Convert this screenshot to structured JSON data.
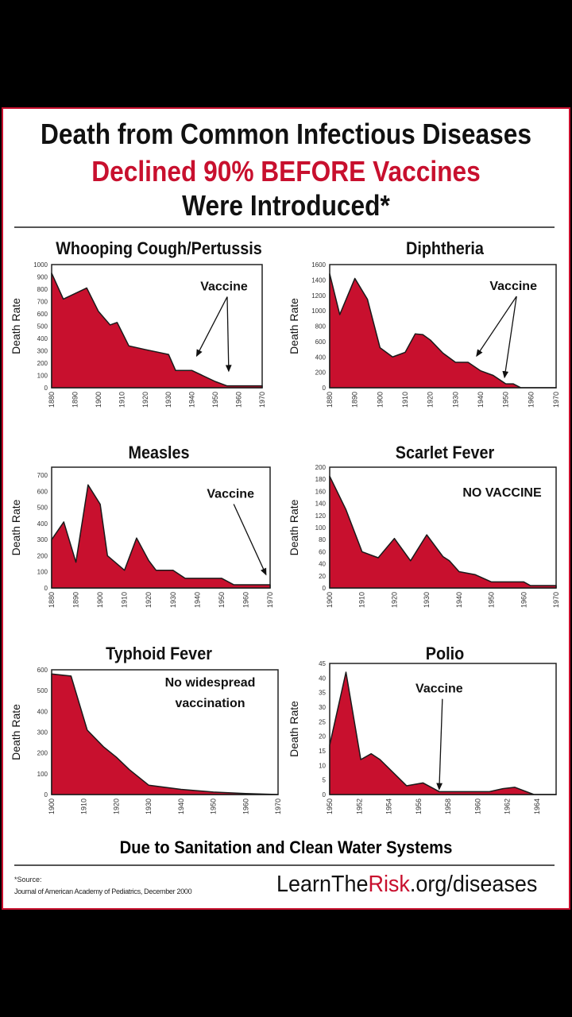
{
  "header": {
    "line1": "Death from Common Infectious Diseases",
    "line2": "Declined 90% BEFORE Vaccines",
    "line3": "Were Introduced*"
  },
  "footer": {
    "tagline": "Due to Sanitation and Clean Water Systems",
    "source_label": "*Source:",
    "source_text": "Journal of American Academy of Pediatrics, December 2000",
    "site_part1": "LearnThe",
    "site_part2": "Risk",
    "site_part3": ".org/diseases"
  },
  "colors": {
    "fill": "#c8102e",
    "accent": "#c8102e",
    "text": "#111111"
  },
  "chart_data": [
    {
      "type": "area",
      "title": "Whooping Cough/Pertussis",
      "ylabel": "Death Rate",
      "xlabel": "",
      "xlim": [
        1880,
        1970
      ],
      "ylim": [
        0,
        1000
      ],
      "xticks": [
        1880,
        1890,
        1900,
        1910,
        1920,
        1930,
        1940,
        1950,
        1960,
        1970
      ],
      "yticks": [
        0,
        100,
        200,
        300,
        400,
        500,
        600,
        700,
        800,
        900,
        1000
      ],
      "x": [
        1880,
        1885,
        1895,
        1900,
        1905,
        1908,
        1913,
        1920,
        1930,
        1933,
        1940,
        1950,
        1955,
        1970
      ],
      "y": [
        930,
        720,
        810,
        620,
        510,
        530,
        340,
        310,
        270,
        140,
        140,
        50,
        15,
        15
      ],
      "annotations": [
        {
          "text": "Vaccine",
          "at": [
            1953.7,
            790
          ],
          "arrows": [
            [
              1942,
              258
            ],
            [
              1955.7,
              135
            ]
          ]
        }
      ]
    },
    {
      "type": "area",
      "title": "Diphtheria",
      "ylabel": "Death Rate",
      "xlabel": "",
      "xlim": [
        1880,
        1970
      ],
      "ylim": [
        0,
        1600
      ],
      "xticks": [
        1880,
        1890,
        1900,
        1910,
        1920,
        1930,
        1940,
        1950,
        1960,
        1970
      ],
      "yticks": [
        0,
        200,
        400,
        600,
        800,
        1000,
        1200,
        1400,
        1600
      ],
      "x": [
        1880,
        1884,
        1890,
        1895,
        1900,
        1905,
        1910,
        1914,
        1917,
        1920,
        1925,
        1930,
        1935,
        1940,
        1945,
        1950,
        1953,
        1956,
        1970
      ],
      "y": [
        1480,
        950,
        1420,
        1150,
        520,
        400,
        460,
        700,
        690,
        620,
        450,
        330,
        330,
        220,
        160,
        50,
        50,
        0,
        0
      ],
      "annotations": [
        {
          "text": "Vaccine",
          "at": [
            1953,
            1270
          ],
          "arrows": [
            [
              1938.4,
              413
            ],
            [
              1949.5,
              134
            ]
          ]
        }
      ]
    },
    {
      "type": "area",
      "title": "Measles",
      "ylabel": "Death Rate",
      "xlabel": "",
      "xlim": [
        1880,
        1970
      ],
      "ylim": [
        0,
        750
      ],
      "xticks": [
        1880,
        1890,
        1900,
        1910,
        1920,
        1930,
        1940,
        1950,
        1960,
        1970
      ],
      "yticks": [
        0,
        100,
        200,
        300,
        400,
        500,
        600,
        700
      ],
      "x": [
        1880,
        1885,
        1890,
        1895,
        1900,
        1903,
        1910,
        1915,
        1920,
        1923,
        1930,
        1935,
        1950,
        1955,
        1970
      ],
      "y": [
        300,
        410,
        160,
        640,
        520,
        200,
        110,
        310,
        170,
        110,
        110,
        60,
        60,
        20,
        20
      ],
      "annotations": [
        {
          "text": "Vaccine",
          "at": [
            1953.7,
            560
          ],
          "arrows": [
            [
              1968.3,
              83
            ]
          ]
        }
      ]
    },
    {
      "type": "area",
      "title": "Scarlet Fever",
      "ylabel": "Death Rate",
      "xlabel": "",
      "xlim": [
        1900,
        1970
      ],
      "ylim": [
        0,
        200
      ],
      "xticks": [
        1900,
        1910,
        1920,
        1930,
        1940,
        1950,
        1960,
        1970
      ],
      "yticks": [
        0,
        20,
        40,
        60,
        80,
        100,
        120,
        140,
        160,
        180,
        200
      ],
      "x": [
        1900,
        1905,
        1910,
        1915,
        1920,
        1925,
        1930,
        1935,
        1937,
        1940,
        1945,
        1950,
        1960,
        1962,
        1970
      ],
      "y": [
        185,
        130,
        60,
        50,
        82,
        45,
        88,
        52,
        45,
        27,
        22,
        10,
        10,
        4,
        4
      ],
      "annotations": [
        {
          "text": "NO VACCINE",
          "at": [
            1953.3,
            151
          ],
          "arrows": []
        }
      ]
    },
    {
      "type": "area",
      "title": "Typhoid Fever",
      "ylabel": "Death Rate",
      "xlabel": "",
      "xlim": [
        1900,
        1970
      ],
      "ylim": [
        0,
        600
      ],
      "xticks": [
        1900,
        1910,
        1920,
        1930,
        1940,
        1950,
        1960,
        1970
      ],
      "yticks": [
        0,
        100,
        200,
        300,
        400,
        500,
        600
      ],
      "x": [
        1900,
        1906,
        1911,
        1916,
        1920,
        1924,
        1930,
        1935,
        1940,
        1950,
        1960,
        1970
      ],
      "y": [
        580,
        570,
        310,
        230,
        180,
        120,
        45,
        35,
        25,
        12,
        5,
        0
      ],
      "annotations": [
        {
          "text": "No widespread",
          "at": [
            1949,
            520
          ],
          "arrows": []
        },
        {
          "text": "vaccination",
          "at": [
            1949,
            420
          ],
          "arrows": []
        }
      ]
    },
    {
      "type": "area",
      "title": "Polio",
      "ylabel": "Death Rate",
      "xlabel": "",
      "xlim": [
        1950,
        1965.3
      ],
      "ylim": [
        0,
        45
      ],
      "xticks": [
        1950,
        1952,
        1954,
        1956,
        1958,
        1960,
        1962,
        1964
      ],
      "yticks": [
        0,
        5,
        10,
        15,
        20,
        25,
        30,
        35,
        40,
        45
      ],
      "x": [
        1950,
        1951.1,
        1952.1,
        1952.8,
        1953.4,
        1955.2,
        1956.3,
        1957.4,
        1960.8,
        1961.7,
        1962.5,
        1963.8,
        1965.3
      ],
      "y": [
        17,
        42,
        12,
        14,
        12,
        3,
        4,
        1,
        1,
        2,
        2.5,
        0,
        0
      ],
      "annotations": [
        {
          "text": "Vaccine",
          "at": [
            1957.4,
            35
          ],
          "arrows": [
            [
              1957.4,
              1.8
            ]
          ]
        }
      ]
    }
  ]
}
